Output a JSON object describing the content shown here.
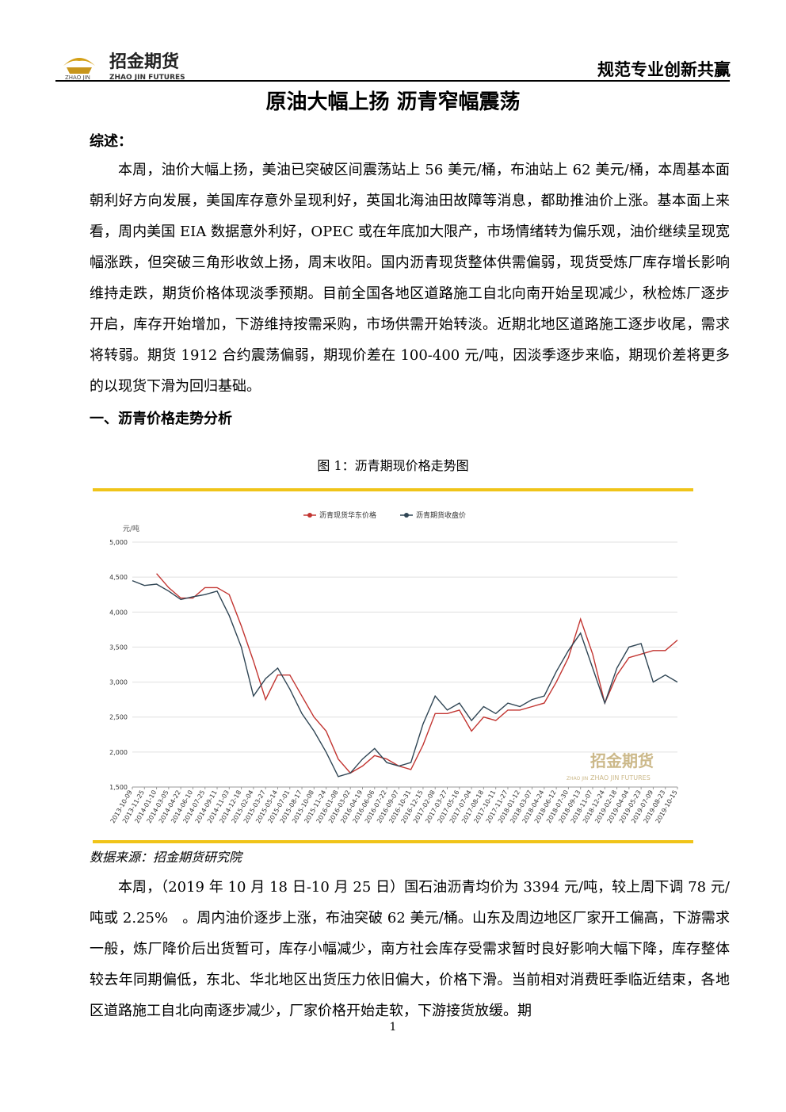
{
  "header": {
    "logo_text": "招金期货",
    "logo_sub_left": "ZHAO JIN",
    "logo_sub_right": "ZHAO JIN FUTURES",
    "slogan": "规范专业创新共赢"
  },
  "title": "原油大幅上扬 沥青窄幅震荡",
  "summary_heading": "综述：",
  "summary_paragraph": "本周，油价大幅上扬，美油已突破区间震荡站上 56 美元/桶，布油站上 62 美元/桶，本周基本面朝利好方向发展，美国库存意外呈现利好，英国北海油田故障等消息，都助推油价上涨。基本面上来看，周内美国 EIA 数据意外利好，OPEC 或在年底加大限产，市场情绪转为偏乐观，油价继续呈现宽幅涨跌，但突破三角形收敛上扬，周末收阳。国内沥青现货整体供需偏弱，现货受炼厂库存增长影响维持走跌，期货价格体现淡季预期。目前全国各地区道路施工自北向南开始呈现减少，秋检炼厂逐步开启，库存开始增加，下游维持按需采购，市场供需开始转淡。近期北地区道路施工逐步收尾，需求将转弱。期货 1912 合约震荡偏弱，期现价差在 100-400 元/吨，因淡季逐步来临，期现价差将更多的以现货下滑为回归基础。",
  "section_heading": "一、沥青价格走势分析",
  "figure_caption": "图 1：沥青期现价格走势图",
  "chart_watermark": {
    "text": "招金期货",
    "sub": "ZHAO JIN FUTURES",
    "small": "ZHAO JIN"
  },
  "chart_data": {
    "type": "line",
    "y_unit": "元/吨",
    "categories": [
      "2013-10-09",
      "2013-11-25",
      "2014-01-10",
      "2014-03-05",
      "2014-04-22",
      "2014-06-10",
      "2014-07-25",
      "2014-09-11",
      "2014-11-03",
      "2014-12-18",
      "2015-02-04",
      "2015-03-27",
      "2015-05-14",
      "2015-07-01",
      "2015-08-17",
      "2015-10-08",
      "2015-11-24",
      "2016-01-08",
      "2016-03-02",
      "2016-04-19",
      "2016-06-06",
      "2016-07-22",
      "2016-09-07",
      "2016-10-31",
      "2016-12-15",
      "2017-02-08",
      "2017-03-27",
      "2017-05-16",
      "2017-07-04",
      "2017-08-18",
      "2017-10-11",
      "2017-11-27",
      "2018-01-12",
      "2018-03-07",
      "2018-04-24",
      "2018-06-12",
      "2018-07-30",
      "2018-09-13",
      "2018-11-07",
      "2018-12-24",
      "2019-02-18",
      "2019-04-04",
      "2019-05-23",
      "2019-07-09",
      "2019-08-23",
      "2019-10-15"
    ],
    "series": [
      {
        "name": "沥青现货华东价格",
        "color": "#c23531",
        "values": [
          null,
          null,
          4550,
          4350,
          4200,
          4200,
          4350,
          4350,
          4250,
          3800,
          3300,
          2750,
          3100,
          3100,
          2800,
          2500,
          2300,
          1900,
          1700,
          1800,
          1950,
          1900,
          1800,
          1750,
          2100,
          2550,
          2550,
          2600,
          2300,
          2500,
          2450,
          2600,
          2600,
          2650,
          2700,
          3000,
          3350,
          3900,
          3400,
          2700,
          3100,
          3350,
          3400,
          3450,
          3450,
          3600
        ]
      },
      {
        "name": "沥青期货收盘价",
        "color": "#2f4554",
        "values": [
          4450,
          4380,
          4400,
          4300,
          4180,
          4220,
          4250,
          4300,
          3950,
          3500,
          2800,
          3050,
          3200,
          2900,
          2550,
          2300,
          2000,
          1650,
          1700,
          1900,
          2050,
          1850,
          1800,
          1850,
          2400,
          2800,
          2600,
          2700,
          2450,
          2650,
          2550,
          2700,
          2650,
          2750,
          2800,
          3150,
          3450,
          3700,
          3200,
          2700,
          3200,
          3500,
          3550,
          3000,
          3100,
          3000
        ]
      }
    ],
    "ylim": [
      1500,
      5000
    ],
    "yticks": [
      {
        "value": 1500,
        "label": "1,500"
      },
      {
        "value": 2000,
        "label": "2,000"
      },
      {
        "value": 2500,
        "label": "2,500"
      },
      {
        "value": 3000,
        "label": "3,000"
      },
      {
        "value": 3500,
        "label": "3,500"
      },
      {
        "value": 4000,
        "label": "4,000"
      },
      {
        "value": 4500,
        "label": "4,500"
      },
      {
        "value": 5000,
        "label": "5,000"
      }
    ],
    "grid": true,
    "legend": "top"
  },
  "source": "数据来源：招金期货研究院",
  "body_paragraph": "本周，（2019 年 10 月 18 日-10 月 25 日）国石油沥青均价为 3394 元/吨，较上周下调 78 元/吨或 2.25%　。周内油价逐步上涨，布油突破 62 美元/桶。山东及周边地区厂家开工偏高，下游需求一般，炼厂降价后出货暂可，库存小幅减少，南方社会库存受需求暂时良好影响大幅下降，库存整体较去年同期偏低，东北、华北地区出货压力依旧偏大，价格下滑。当前相对消费旺季临近结束，各地区道路施工自北向南逐步减少，厂家价格开始走软，下游接货放缓。期",
  "page_number": "1"
}
